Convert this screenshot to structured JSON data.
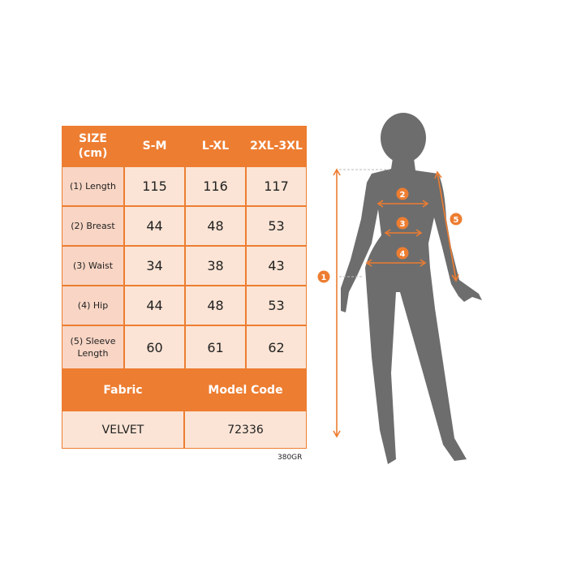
{
  "table": {
    "header": [
      "SIZE\n(cm)",
      "S-M",
      "L-XL",
      "2XL-3XL"
    ],
    "header_line1": "SIZE",
    "header_line2": "(cm)",
    "rows": [
      {
        "label": "(1) Length",
        "values": [
          "115",
          "116",
          "117"
        ]
      },
      {
        "label": "(2) Breast",
        "values": [
          "44",
          "48",
          "53"
        ]
      },
      {
        "label": "(3) Waist",
        "values": [
          "34",
          "38",
          "43"
        ]
      },
      {
        "label": "(4) Hip",
        "values": [
          "44",
          "48",
          "53"
        ]
      },
      {
        "label_line1": "(5) Sleeve",
        "label_line2": "Length",
        "values": [
          "60",
          "61",
          "62"
        ]
      }
    ],
    "fabric_header": "Fabric",
    "model_code_header": "Model Code",
    "fabric": "VELVET",
    "model_code": "72336"
  },
  "footer_code": "380GR",
  "figure": {
    "markers": [
      "1",
      "2",
      "3",
      "4",
      "5"
    ],
    "accent_color": "#ED7D31",
    "silhouette_color": "#6D6D6D"
  }
}
